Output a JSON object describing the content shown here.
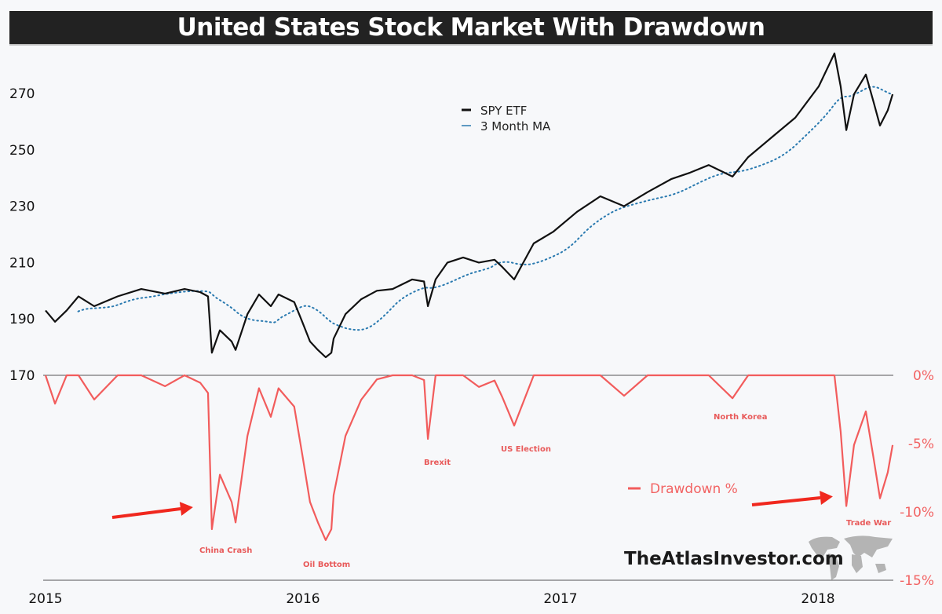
{
  "title": "United States Stock Market With Drawdown",
  "watermark": "TheAtlasInvestor.com",
  "colors": {
    "price": "#111111",
    "ma": "#2a7ab0",
    "drawdown": "#f25c5c",
    "arrow": "#f0281e",
    "background": "#f7f8fa"
  },
  "chart_data": {
    "type": "line",
    "title": "United States Stock Market With Drawdown",
    "x_ticks": [
      "2015",
      "2016",
      "2017",
      "2018"
    ],
    "x_tick_values": [
      2015,
      2016,
      2017,
      2018
    ],
    "xlim": [
      2015.0,
      2018.29
    ],
    "left_axis": {
      "ticks": [
        "170",
        "190",
        "210",
        "230",
        "250",
        "270"
      ],
      "tick_values": [
        170,
        190,
        210,
        230,
        250,
        270
      ],
      "ylim": [
        170,
        287
      ]
    },
    "right_axis": {
      "ticks": [
        "0%",
        "-5%",
        "-10%",
        "-15%"
      ],
      "tick_values": [
        0,
        -5,
        -10,
        -15
      ],
      "ylim": [
        -15,
        0
      ]
    },
    "legend": {
      "price": "SPY ETF",
      "ma": "3 Month MA",
      "drawdown": "Drawdown %"
    },
    "series": [
      {
        "name": "SPY ETF",
        "x": [
          2015.0,
          2015.037,
          2015.082,
          2015.128,
          2015.189,
          2015.28,
          2015.372,
          2015.464,
          2015.54,
          2015.601,
          2015.631,
          2015.646,
          2015.677,
          2015.723,
          2015.738,
          2015.784,
          2015.829,
          2015.875,
          2015.905,
          2015.966,
          2015.997,
          2016.027,
          2016.058,
          2016.088,
          2016.11,
          2016.119,
          2016.165,
          2016.226,
          2016.287,
          2016.348,
          2016.424,
          2016.47,
          2016.485,
          2016.515,
          2016.561,
          2016.622,
          2016.683,
          2016.744,
          2016.774,
          2016.82,
          2016.896,
          2016.973,
          2017.064,
          2017.155,
          2017.247,
          2017.338,
          2017.43,
          2017.503,
          2017.576,
          2017.668,
          2017.729,
          2017.82,
          2017.912,
          2018.003,
          2018.064,
          2018.088,
          2018.11,
          2018.14,
          2018.186,
          2018.216,
          2018.241,
          2018.271,
          2018.29
        ],
        "y": [
          193,
          189,
          193,
          198,
          194.5,
          198,
          200.6,
          199,
          200.6,
          199.5,
          198,
          178,
          186,
          182,
          179,
          191.7,
          198.7,
          194.5,
          198.7,
          196,
          189,
          182,
          179,
          176.4,
          178,
          183,
          191.7,
          197,
          200,
          200.6,
          204,
          203.3,
          194.5,
          204,
          210,
          211.8,
          210,
          211,
          208.4,
          204,
          216.8,
          221,
          228,
          233.5,
          230,
          235,
          239.6,
          241.9,
          244.6,
          240.5,
          247.4,
          254.4,
          261.4,
          272.5,
          284.2,
          272.5,
          257,
          269.7,
          276.7,
          267,
          258.6,
          264,
          269.7
        ]
      },
      {
        "name": "3 Month MA",
        "derived_from": "SPY ETF"
      },
      {
        "name": "Drawdown %",
        "derived_from": "SPY ETF"
      }
    ],
    "annotations": [
      "China Crash",
      "Oil Bottom",
      "Brexit",
      "US Election",
      "North Korea",
      "Trade War"
    ]
  }
}
